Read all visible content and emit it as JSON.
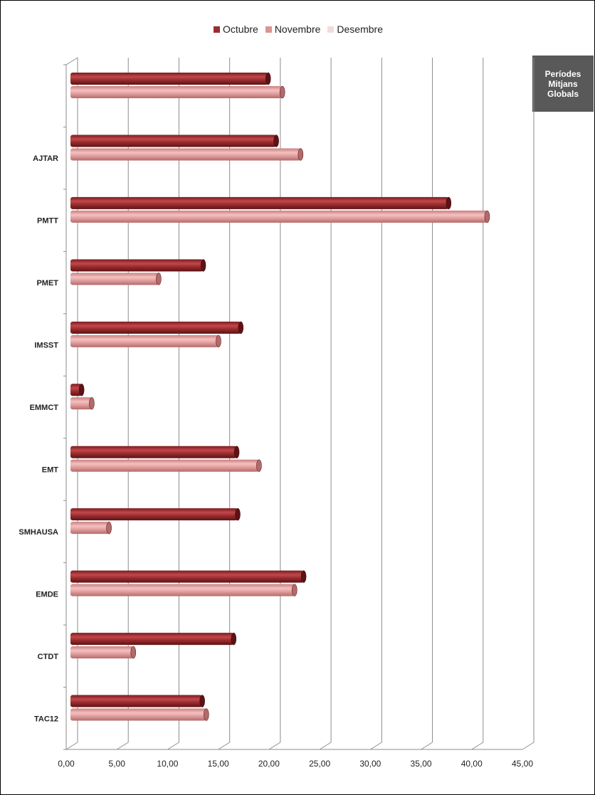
{
  "chart_data": {
    "type": "bar",
    "orientation": "horizontal",
    "categories": [
      "",
      "AJTAR",
      "PMTT",
      "PMET",
      "IMSST",
      "EMMCT",
      "EMT",
      "SMHAUSA",
      "EMDE",
      "CTDT",
      "TAC12"
    ],
    "series": [
      {
        "name": "Octubre",
        "color": "#9b2d30",
        "values": [
          19.5,
          20.3,
          37.3,
          13.1,
          16.8,
          1.1,
          16.4,
          16.5,
          23.0,
          16.1,
          13.0
        ]
      },
      {
        "name": "Novembre",
        "color": "#d99594",
        "values": [
          20.9,
          22.7,
          41.1,
          8.7,
          14.6,
          2.1,
          18.6,
          3.8,
          22.1,
          6.2,
          13.4
        ]
      },
      {
        "name": "Desembre",
        "color": "#f2dcdb",
        "values": [
          0,
          0,
          0,
          0,
          0,
          0,
          0,
          0,
          0,
          0,
          0
        ]
      }
    ],
    "xlim": [
      0,
      45
    ],
    "xticks": [
      "0,00",
      "5,00",
      "10,00",
      "15,00",
      "20,00",
      "25,00",
      "30,00",
      "35,00",
      "40,00",
      "45,00"
    ],
    "grid": true,
    "legend": "top"
  },
  "legend": {
    "items": [
      {
        "label": "Octubre",
        "color": "#9b2d30"
      },
      {
        "label": "Novembre",
        "color": "#d99594"
      },
      {
        "label": "Desembre",
        "color": "#f2dcdb"
      }
    ]
  },
  "sidebox": {
    "lines": [
      "Períodes",
      "Mitjans",
      "Globals"
    ]
  }
}
